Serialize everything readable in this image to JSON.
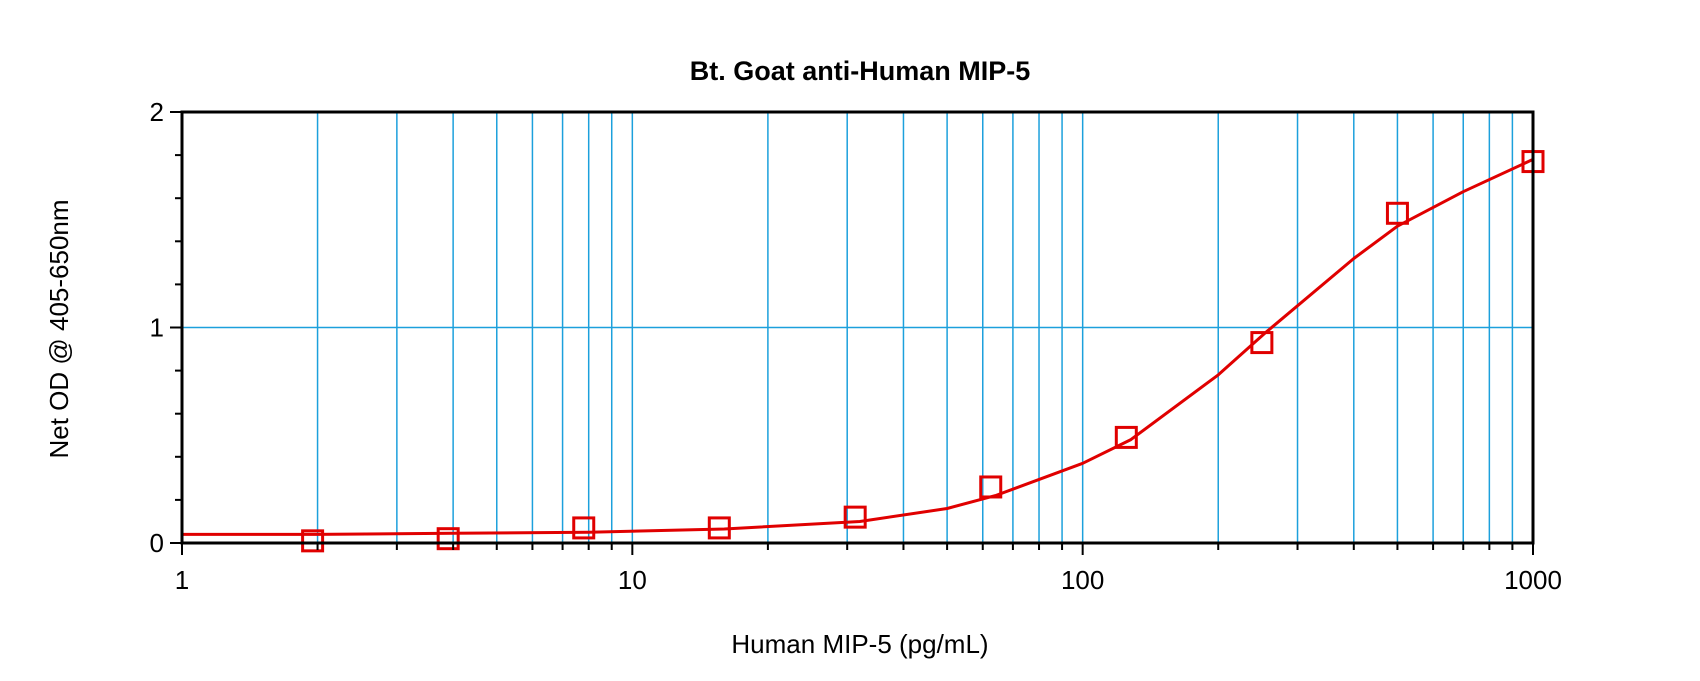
{
  "chart_data": {
    "type": "scatter",
    "title": "Bt. Goat anti-Human MIP-5",
    "xlabel": "Human MIP-5 (pg/mL)",
    "ylabel": "Net OD @ 405-650nm",
    "x_scale": "log",
    "xlim": [
      1,
      1000
    ],
    "ylim": [
      0,
      2
    ],
    "x_ticks": [
      "1",
      "10",
      "100",
      "1000"
    ],
    "y_ticks": [
      "0",
      "1",
      "2"
    ],
    "grid": true,
    "legend": "none",
    "series": [
      {
        "values_x": [
          1.95,
          3.9,
          7.8,
          15.6,
          31.25,
          62.5,
          125,
          250,
          500,
          1000
        ],
        "values_y": [
          0.01,
          0.02,
          0.07,
          0.07,
          0.12,
          0.26,
          0.49,
          0.93,
          1.53,
          1.77
        ]
      }
    ],
    "fit_curve": {
      "type": "4PL",
      "x": [
        1,
        2,
        4,
        8,
        16,
        32,
        50,
        64,
        100,
        128,
        200,
        256,
        400,
        500,
        700,
        1000
      ],
      "y": [
        0.04,
        0.04,
        0.045,
        0.05,
        0.065,
        0.1,
        0.16,
        0.22,
        0.37,
        0.48,
        0.78,
        0.98,
        1.32,
        1.47,
        1.63,
        1.78
      ]
    },
    "colors": {
      "grid": "#1ca0dc",
      "data": "#e00000",
      "axis": "#000000"
    }
  }
}
